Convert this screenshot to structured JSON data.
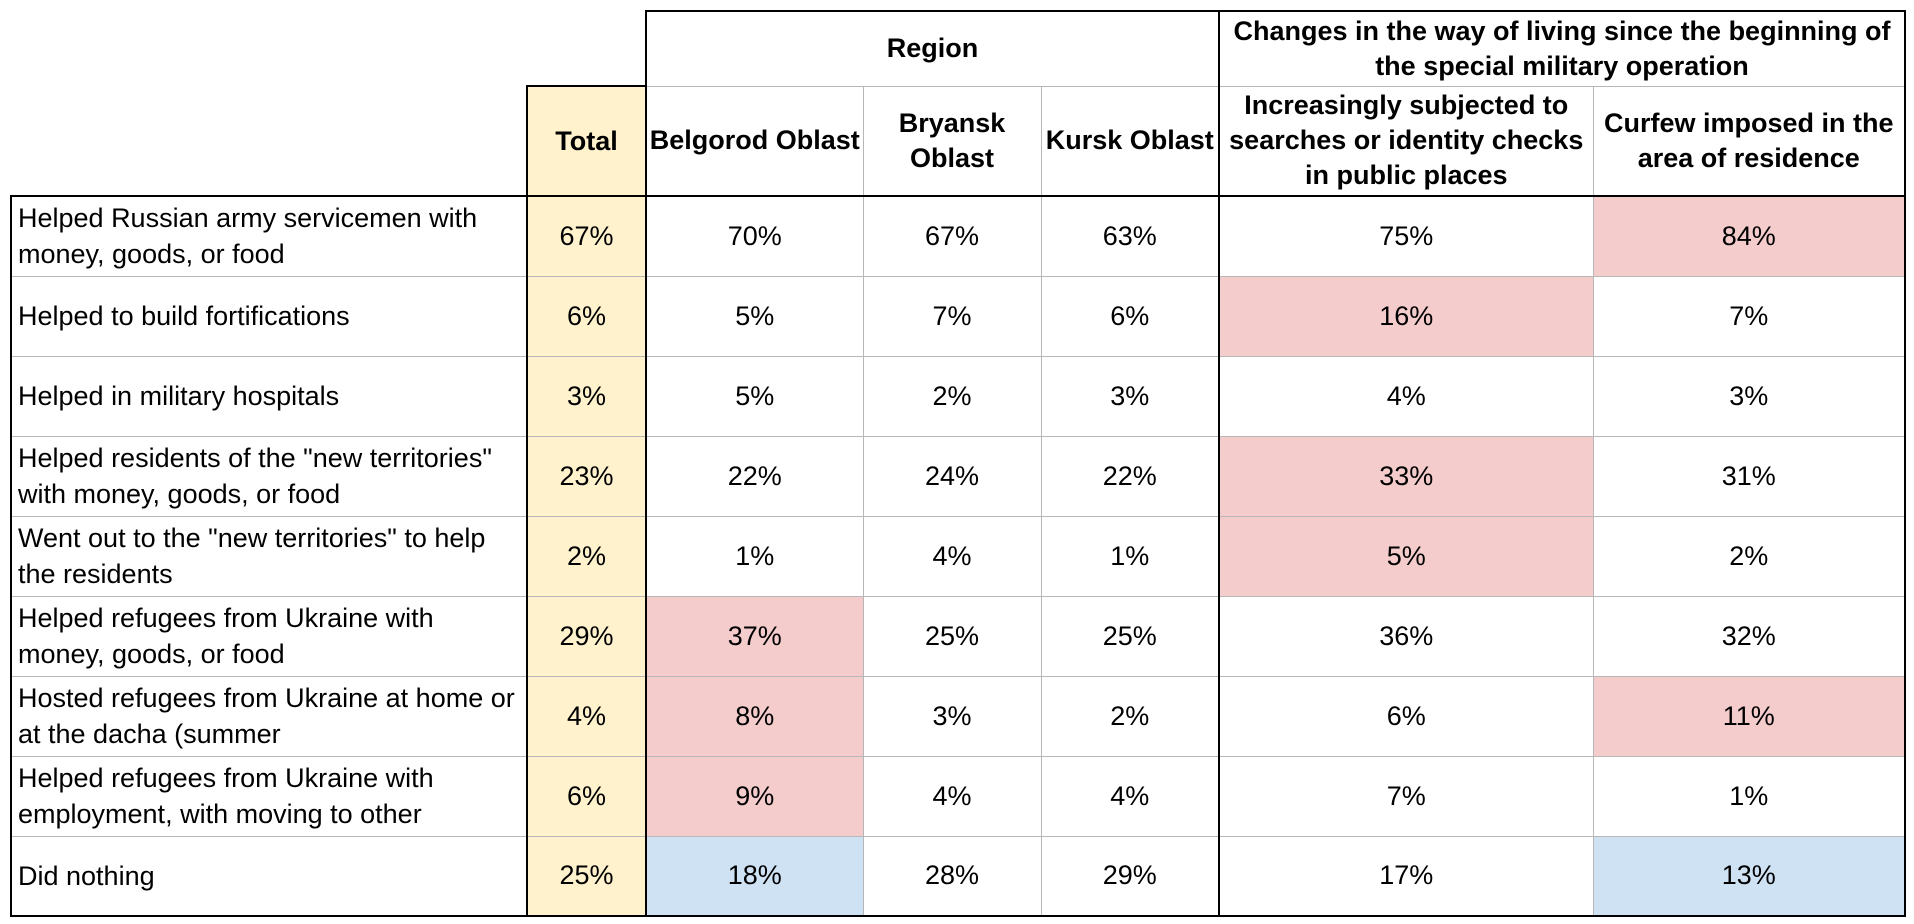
{
  "chart_data": {
    "type": "table",
    "header_groups": {
      "region": "Region",
      "changes": "Changes in the way of living since the beginning of the special military operation"
    },
    "columns": [
      "Total",
      "Belgorod Oblast",
      "Bryansk Oblast",
      "Kursk Oblast",
      "Increasingly subjected to searches or identity checks in public places",
      "Curfew imposed in the area of residence"
    ],
    "rows": [
      {
        "label": "Helped Russian army servicemen with money, goods, or food",
        "values": [
          "67%",
          "70%",
          "67%",
          "63%",
          "75%",
          "84%"
        ],
        "highlight": [
          "total",
          "",
          "",
          "",
          "",
          "hi"
        ]
      },
      {
        "label": "Helped to build fortifications",
        "values": [
          "6%",
          "5%",
          "7%",
          "6%",
          "16%",
          "7%"
        ],
        "highlight": [
          "total",
          "",
          "",
          "",
          "hi",
          ""
        ]
      },
      {
        "label": "Helped in military hospitals",
        "values": [
          "3%",
          "5%",
          "2%",
          "3%",
          "4%",
          "3%"
        ],
        "highlight": [
          "total",
          "",
          "",
          "",
          "",
          ""
        ]
      },
      {
        "label": "Helped residents of the \"new territories\" with money, goods, or food",
        "values": [
          "23%",
          "22%",
          "24%",
          "22%",
          "33%",
          "31%"
        ],
        "highlight": [
          "total",
          "",
          "",
          "",
          "hi",
          ""
        ]
      },
      {
        "label": "Went out to the \"new territories\" to help the residents",
        "values": [
          "2%",
          "1%",
          "4%",
          "1%",
          "5%",
          "2%"
        ],
        "highlight": [
          "total",
          "",
          "",
          "",
          "hi",
          ""
        ]
      },
      {
        "label": "Helped refugees from Ukraine with money, goods, or food",
        "values": [
          "29%",
          "37%",
          "25%",
          "25%",
          "36%",
          "32%"
        ],
        "highlight": [
          "total",
          "hi",
          "",
          "",
          "",
          ""
        ]
      },
      {
        "label": "Hosted refugees from Ukraine at home or at the dacha (summer",
        "values": [
          "4%",
          "8%",
          "3%",
          "2%",
          "6%",
          "11%"
        ],
        "highlight": [
          "total",
          "hi",
          "",
          "",
          "",
          "hi"
        ]
      },
      {
        "label": "Helped refugees from Ukraine with employment, with moving to other",
        "values": [
          "6%",
          "9%",
          "4%",
          "4%",
          "7%",
          "1%"
        ],
        "highlight": [
          "total",
          "hi",
          "",
          "",
          "",
          ""
        ]
      },
      {
        "label": "Did nothing",
        "values": [
          "25%",
          "18%",
          "28%",
          "29%",
          "17%",
          "13%"
        ],
        "highlight": [
          "total",
          "lo",
          "",
          "",
          "",
          "lo"
        ]
      }
    ],
    "colors": {
      "total": "#fff2cc",
      "hi": "#f4cccc",
      "lo": "#cfe2f3"
    }
  }
}
